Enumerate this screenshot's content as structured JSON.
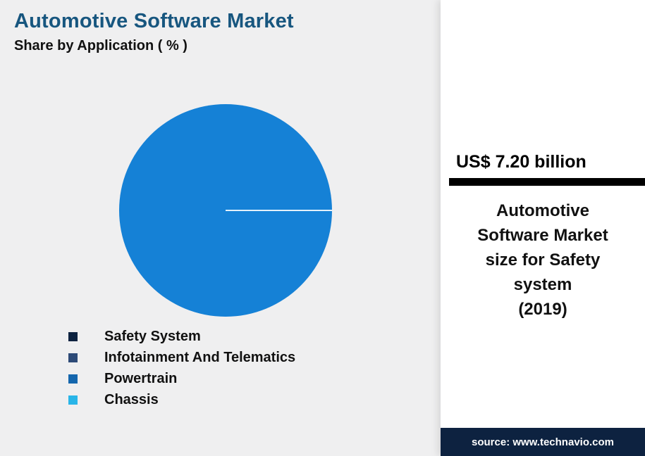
{
  "page": {
    "title": "Automotive Software Market",
    "subtitle": "Share by Application ( % )"
  },
  "chart_data": {
    "type": "pie",
    "title": "Automotive Software Market",
    "subtitle": "Share by Application ( % )",
    "categories": [
      "Safety System",
      "Infotainment And Telematics",
      "Powertrain",
      "Chassis"
    ],
    "values": [
      100,
      0,
      0,
      0
    ],
    "values_note": "Slice percentages are not labeled in the image; the pie renders as a single dominant blue slice with a thin white divider line at the 3 o'clock position",
    "pie_fill": "#1581d6",
    "legend_colors": [
      "#0d2240",
      "#2d4a77",
      "#1466ad",
      "#29b5e8"
    ],
    "legend_position": "bottom-left",
    "grid": false
  },
  "stat_panel": {
    "headline": "US$ 7.20 billion",
    "caption_line1": "Automotive Software Market size for Safety system",
    "caption_line2": "(2019)",
    "accent_bar_color": "#000000",
    "background": "#ffffff"
  },
  "footer": {
    "source_text": "source: www.technavio.com",
    "background": "#0d2240"
  }
}
